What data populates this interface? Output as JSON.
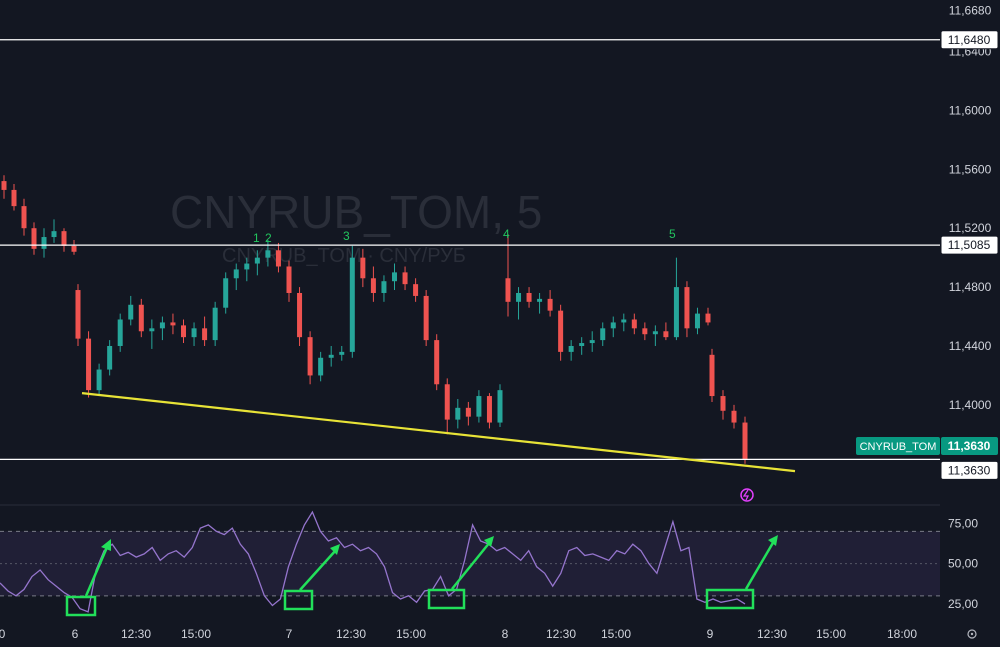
{
  "chart_data": {
    "type": "candlestick",
    "symbol": "CNYRUB_TOM",
    "interval": "5",
    "watermark_title": "CNYRUB_TOM, 5",
    "watermark_subtitle": "CNYRUB_TOM · CNY/РУБ",
    "price_axis": {
      "ticks": [
        "11,6680",
        "11,6400",
        "11,6000",
        "11,5600",
        "11,5200",
        "11,4800",
        "11,4400",
        "11,4000"
      ],
      "tick_values": [
        11.668,
        11.64,
        11.6,
        11.56,
        11.52,
        11.48,
        11.44,
        11.4
      ],
      "ylim": [
        11.332,
        11.675
      ]
    },
    "time_axis": {
      "labels": [
        "0",
        "6",
        "12:30",
        "15:00",
        "7",
        "12:30",
        "15:00",
        "8",
        "12:30",
        "15:00",
        "9",
        "12:30",
        "15:00",
        "18:00"
      ]
    },
    "horizontal_levels": [
      {
        "label": "11,6480",
        "value": 11.648,
        "color": "#ffffff"
      },
      {
        "label": "11,5085",
        "value": 11.5085,
        "color": "#ffffff"
      },
      {
        "label": "11,3630",
        "value": 11.363,
        "color": "#ffffff"
      }
    ],
    "last_price": {
      "symbol_label": "CNYRUB_TOM",
      "label": "11,3630",
      "value": 11.363,
      "color": "#089981"
    },
    "trendline": {
      "from": {
        "x": "6",
        "y": 11.408
      },
      "to": {
        "x": "9",
        "y": 11.355
      },
      "color": "#e8e337"
    },
    "wave_labels": [
      "1",
      "2",
      "3",
      "4",
      "5"
    ],
    "candles": [
      [
        11.552,
        11.556,
        11.54,
        11.546
      ],
      [
        11.546,
        11.55,
        11.532,
        11.535
      ],
      [
        11.535,
        11.54,
        11.515,
        11.52
      ],
      [
        11.52,
        11.524,
        11.502,
        11.506
      ],
      [
        11.506,
        11.52,
        11.5,
        11.514
      ],
      [
        11.514,
        11.526,
        11.51,
        11.518
      ],
      [
        11.518,
        11.52,
        11.504,
        11.508
      ],
      [
        11.508,
        11.512,
        11.502,
        11.504
      ],
      [
        11.478,
        11.482,
        11.44,
        11.445
      ],
      [
        11.445,
        11.45,
        11.405,
        11.41
      ],
      [
        11.41,
        11.428,
        11.406,
        11.424
      ],
      [
        11.424,
        11.444,
        11.42,
        11.44
      ],
      [
        11.44,
        11.462,
        11.436,
        11.458
      ],
      [
        11.458,
        11.474,
        11.454,
        11.468
      ],
      [
        11.468,
        11.472,
        11.446,
        11.45
      ],
      [
        11.45,
        11.458,
        11.438,
        11.452
      ],
      [
        11.452,
        11.46,
        11.444,
        11.456
      ],
      [
        11.456,
        11.462,
        11.448,
        11.454
      ],
      [
        11.454,
        11.458,
        11.442,
        11.446
      ],
      [
        11.446,
        11.456,
        11.44,
        11.452
      ],
      [
        11.452,
        11.46,
        11.44,
        11.444
      ],
      [
        11.444,
        11.47,
        11.44,
        11.466
      ],
      [
        11.466,
        11.49,
        11.462,
        11.486
      ],
      [
        11.486,
        11.496,
        11.478,
        11.492
      ],
      [
        11.492,
        11.5,
        11.484,
        11.496
      ],
      [
        11.496,
        11.505,
        11.488,
        11.5
      ],
      [
        11.5,
        11.512,
        11.494,
        11.505
      ],
      [
        11.505,
        11.51,
        11.49,
        11.494
      ],
      [
        11.494,
        11.498,
        11.47,
        11.476
      ],
      [
        11.476,
        11.48,
        11.44,
        11.446
      ],
      [
        11.446,
        11.45,
        11.414,
        11.42
      ],
      [
        11.42,
        11.436,
        11.416,
        11.432
      ],
      [
        11.432,
        11.44,
        11.426,
        11.434
      ],
      [
        11.434,
        11.44,
        11.43,
        11.436
      ],
      [
        11.436,
        11.508,
        11.432,
        11.5
      ],
      [
        11.5,
        11.506,
        11.48,
        11.486
      ],
      [
        11.486,
        11.494,
        11.47,
        11.476
      ],
      [
        11.476,
        11.488,
        11.47,
        11.484
      ],
      [
        11.484,
        11.496,
        11.478,
        11.49
      ],
      [
        11.49,
        11.494,
        11.478,
        11.482
      ],
      [
        11.482,
        11.486,
        11.47,
        11.474
      ],
      [
        11.474,
        11.478,
        11.44,
        11.444
      ],
      [
        11.444,
        11.448,
        11.41,
        11.414
      ],
      [
        11.414,
        11.418,
        11.38,
        11.39
      ],
      [
        11.39,
        11.404,
        11.384,
        11.398
      ],
      [
        11.398,
        11.402,
        11.386,
        11.392
      ],
      [
        11.392,
        11.41,
        11.388,
        11.406
      ],
      [
        11.406,
        11.408,
        11.384,
        11.388
      ],
      [
        11.388,
        11.414,
        11.385,
        11.41
      ],
      [
        11.486,
        11.516,
        11.46,
        11.47
      ],
      [
        11.47,
        11.48,
        11.458,
        11.476
      ],
      [
        11.476,
        11.48,
        11.466,
        11.47
      ],
      [
        11.47,
        11.476,
        11.462,
        11.472
      ],
      [
        11.472,
        11.478,
        11.46,
        11.464
      ],
      [
        11.464,
        11.468,
        11.43,
        11.436
      ],
      [
        11.436,
        11.444,
        11.43,
        11.44
      ],
      [
        11.44,
        11.446,
        11.434,
        11.442
      ],
      [
        11.442,
        11.45,
        11.436,
        11.444
      ],
      [
        11.444,
        11.456,
        11.44,
        11.452
      ],
      [
        11.452,
        11.46,
        11.446,
        11.456
      ],
      [
        11.456,
        11.462,
        11.45,
        11.458
      ],
      [
        11.458,
        11.462,
        11.448,
        11.452
      ],
      [
        11.452,
        11.456,
        11.444,
        11.448
      ],
      [
        11.448,
        11.454,
        11.44,
        11.45
      ],
      [
        11.45,
        11.456,
        11.444,
        11.446
      ],
      [
        11.446,
        11.5,
        11.444,
        11.48
      ],
      [
        11.48,
        11.484,
        11.446,
        11.452
      ],
      [
        11.452,
        11.466,
        11.448,
        11.462
      ],
      [
        11.462,
        11.466,
        11.454,
        11.456
      ],
      [
        11.434,
        11.438,
        11.402,
        11.406
      ],
      [
        11.406,
        11.41,
        11.39,
        11.396
      ],
      [
        11.396,
        11.4,
        11.384,
        11.388
      ],
      [
        11.388,
        11.392,
        11.36,
        11.363
      ]
    ],
    "rsi": {
      "ticks": [
        "75,00",
        "50,00",
        "25,00"
      ],
      "tick_values": [
        75,
        50,
        25
      ],
      "bands": {
        "upper": 70,
        "middle": 50,
        "lower": 30
      },
      "ylim": [
        15,
        82
      ],
      "values": [
        38,
        33,
        30,
        34,
        42,
        46,
        40,
        36,
        32,
        29,
        22,
        20,
        46,
        58,
        62,
        55,
        57,
        54,
        56,
        60,
        52,
        56,
        58,
        54,
        60,
        72,
        74,
        70,
        68,
        72,
        62,
        56,
        44,
        30,
        24,
        28,
        48,
        62,
        74,
        82,
        70,
        64,
        66,
        60,
        62,
        58,
        60,
        56,
        48,
        32,
        28,
        30,
        26,
        33,
        34,
        42,
        30,
        34,
        52,
        74,
        64,
        62,
        58,
        60,
        56,
        52,
        58,
        48,
        44,
        36,
        44,
        58,
        60,
        55,
        56,
        54,
        52,
        58,
        56,
        62,
        58,
        50,
        44,
        60,
        76,
        58,
        60,
        28,
        26,
        28,
        26,
        27,
        28,
        25
      ]
    },
    "rsi_highlight_positions": [
      "6",
      "7",
      "15:00",
      "9"
    ]
  }
}
